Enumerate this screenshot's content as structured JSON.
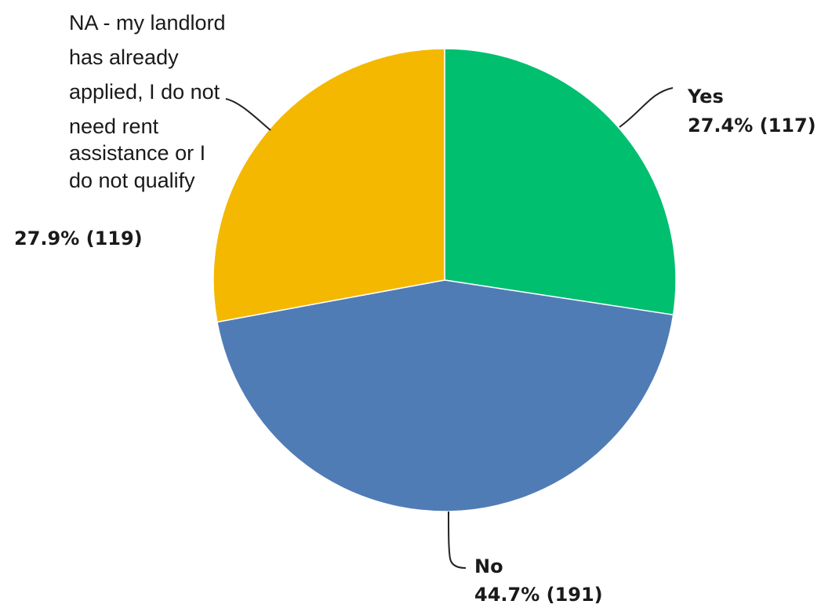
{
  "chart_data": {
    "type": "pie",
    "start_angle_deg": 0,
    "direction": "clockwise",
    "slices": [
      {
        "label": "Yes",
        "percent_text": "27.4% (117)",
        "percent": 27.4,
        "count": 117,
        "color": "#00BF6F"
      },
      {
        "label": "No",
        "percent_text": "44.7% (191)",
        "percent": 44.7,
        "count": 191,
        "color": "#507CB6"
      },
      {
        "label_lines": [
          "NA - my landlord",
          "has already",
          "applied, I do not",
          "need rent",
          "assistance or I",
          "do not qualify"
        ],
        "percent_text": "27.9% (119)",
        "percent": 27.9,
        "count": 119,
        "color": "#F4B800"
      }
    ]
  }
}
